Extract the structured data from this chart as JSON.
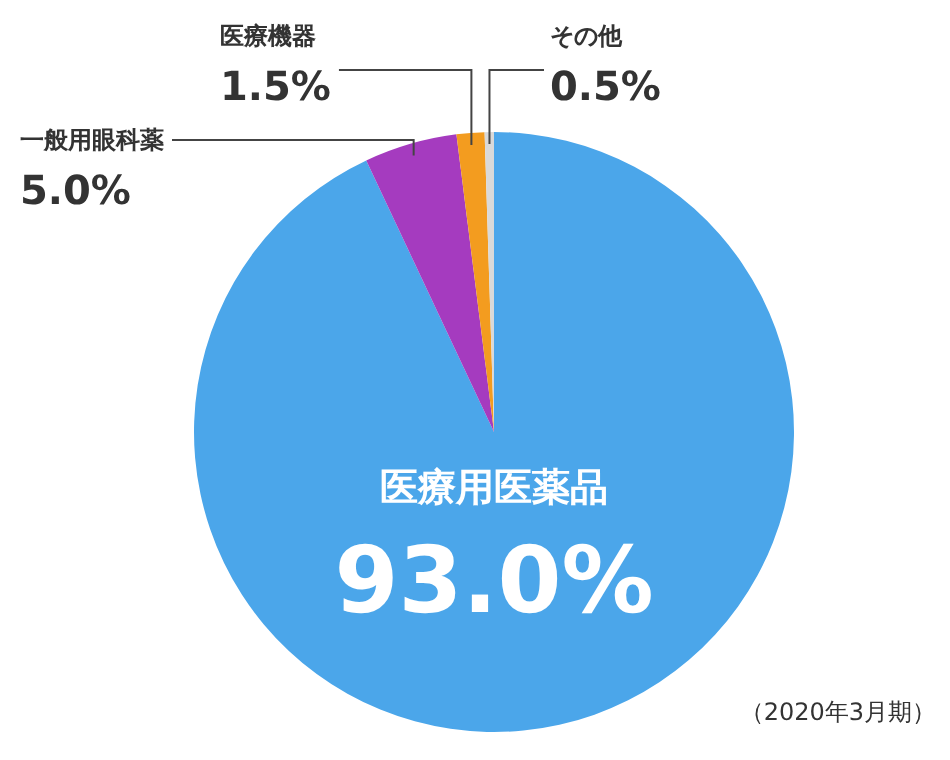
{
  "chart_data": {
    "type": "pie",
    "categories": [
      "医療用医薬品",
      "一般用眼科薬",
      "医療機器",
      "その他"
    ],
    "values": [
      93.0,
      5.0,
      1.5,
      0.5
    ],
    "value_labels": [
      "93.0%",
      "5.0%",
      "1.5%",
      "0.5%"
    ],
    "colors": [
      "#4ba6ea",
      "#a53bbf",
      "#f39c1f",
      "#d9d9d9"
    ],
    "annotations": [
      "（2020年3月期）"
    ]
  }
}
